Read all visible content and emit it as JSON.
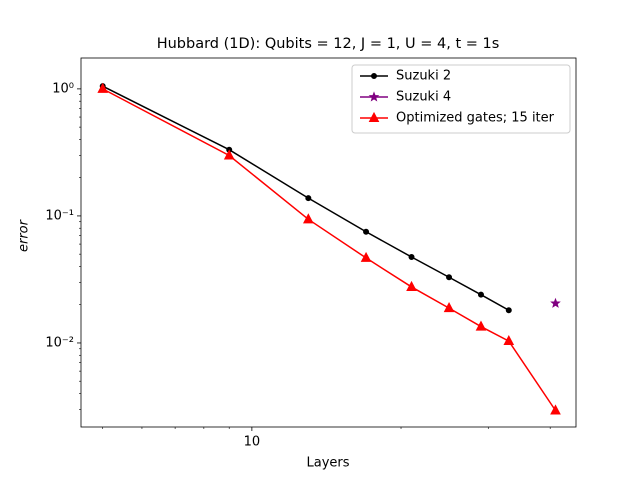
{
  "chart_data": {
    "type": "line",
    "title": "Hubbard (1D): Qubits = 12, J = 1, U = 4, t = 1s",
    "x_label": "Layers",
    "y_label": "error",
    "log_x": true,
    "log_y": true,
    "xlim": [
      4.52,
      45.1
    ],
    "ylim": [
      0.00218,
      1.75
    ],
    "xticks": [
      10
    ],
    "x_minor_ticks": [
      5,
      6,
      7,
      8,
      9,
      20,
      30,
      40
    ],
    "yticks": [
      {
        "value": 0.01,
        "label": "10⁻²"
      },
      {
        "value": 0.1,
        "label": "10⁻¹"
      },
      {
        "value": 1,
        "label": "10⁰"
      }
    ],
    "y_minor_ticks": [
      0.003,
      0.004,
      0.005,
      0.006,
      0.007,
      0.008,
      0.009,
      0.02,
      0.03,
      0.04,
      0.05,
      0.06,
      0.07,
      0.08,
      0.09,
      0.2,
      0.3,
      0.4,
      0.5,
      0.6,
      0.7,
      0.8,
      0.9
    ],
    "legend": "upper right",
    "series": [
      {
        "name": "Suzuki 2",
        "color": "#000000",
        "marker": "dot",
        "x": [
          5,
          9,
          13,
          17,
          21,
          25,
          29,
          33
        ],
        "values": [
          1.05,
          0.332,
          0.138,
          0.075,
          0.0475,
          0.0329,
          0.024,
          0.0181
        ]
      },
      {
        "name": "Suzuki 4",
        "color": "#800080",
        "marker": "star",
        "x": [
          41
        ],
        "values": [
          0.0205
        ]
      },
      {
        "name": "Optimized gates; 15 iter",
        "color": "#ff0000",
        "marker": "triangle",
        "x": [
          5,
          9,
          13,
          17,
          21,
          25,
          29,
          33,
          41
        ],
        "values": [
          1.0,
          0.299,
          0.094,
          0.0467,
          0.0276,
          0.0188,
          0.01346,
          0.01035,
          0.00294
        ]
      }
    ]
  }
}
